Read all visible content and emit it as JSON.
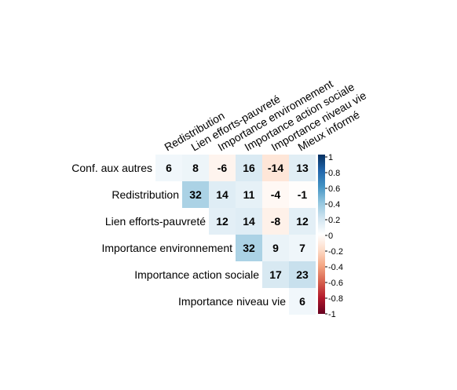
{
  "chart_data": {
    "type": "heatmap",
    "title": "",
    "xlabel": "",
    "ylabel": "",
    "columns": [
      "Redistribution",
      "Lien efforts-pauvreté",
      "Importance environnement",
      "Importance action sociale",
      "Importance niveau vie",
      "Mieux informé"
    ],
    "rows": [
      "Conf. aux autres",
      "Redistribution",
      "Lien efforts-pauvreté",
      "Importance environnement",
      "Importance action sociale",
      "Importance niveau vie"
    ],
    "values": [
      [
        6,
        8,
        -6,
        16,
        -14,
        13
      ],
      [
        null,
        32,
        14,
        11,
        -4,
        -1
      ],
      [
        null,
        null,
        12,
        14,
        -8,
        12
      ],
      [
        null,
        null,
        null,
        32,
        9,
        7
      ],
      [
        null,
        null,
        null,
        null,
        17,
        23
      ],
      [
        null,
        null,
        null,
        null,
        null,
        6
      ]
    ],
    "value_scale": 100,
    "colorbar": {
      "ticks": [
        "1",
        "0.8",
        "0.6",
        "0.4",
        "0.2",
        "0",
        "-0.2",
        "-0.4",
        "-0.6",
        "-0.8",
        "-1"
      ],
      "range": [
        -1,
        1
      ]
    },
    "colors": {
      "negative": "#67001F",
      "mid": "#FFFFFF",
      "positive": "#053061"
    }
  }
}
